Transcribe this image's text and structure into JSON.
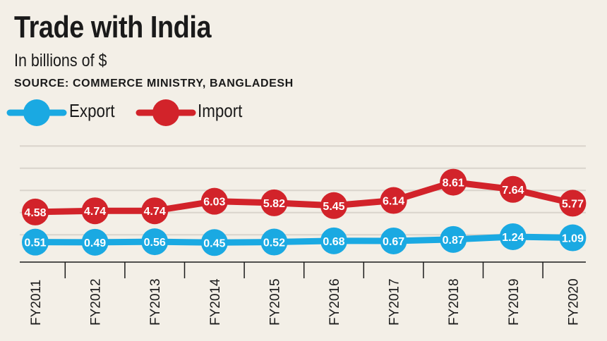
{
  "header": {
    "title": "Trade with India",
    "subtitle": "In billions of $",
    "source": "SOURCE: COMMERCE MINISTRY, BANGLADESH"
  },
  "colors": {
    "export": "#1aa9e2",
    "import": "#d2232a",
    "background": "#f3efe7",
    "grid": "#d9d4cc"
  },
  "chart_data": {
    "type": "line",
    "x": [
      "FY2011",
      "FY2012",
      "FY2013",
      "FY2014",
      "FY2015",
      "FY2016",
      "FY2017",
      "FY2018",
      "FY2019",
      "FY2020"
    ],
    "series": [
      {
        "name": "Export",
        "values": [
          0.51,
          0.49,
          0.56,
          0.45,
          0.52,
          0.68,
          0.67,
          0.87,
          1.24,
          1.09
        ],
        "labels": [
          "0.51",
          "0.49",
          "0.56",
          "0.45",
          "0.52",
          "0.68",
          "0.67",
          "0.87",
          "1.24",
          "1.09"
        ]
      },
      {
        "name": "Import",
        "values": [
          4.58,
          4.74,
          4.74,
          6.03,
          5.82,
          5.45,
          6.14,
          8.61,
          7.64,
          5.77
        ],
        "labels": [
          "4.58",
          "4.74",
          "4.74",
          "6.03",
          "5.82",
          "5.45",
          "6.14",
          "8.61",
          "7.64",
          "5.77"
        ]
      }
    ],
    "ylim": [
      0,
      10
    ],
    "grid": true,
    "legend": "top-left"
  }
}
